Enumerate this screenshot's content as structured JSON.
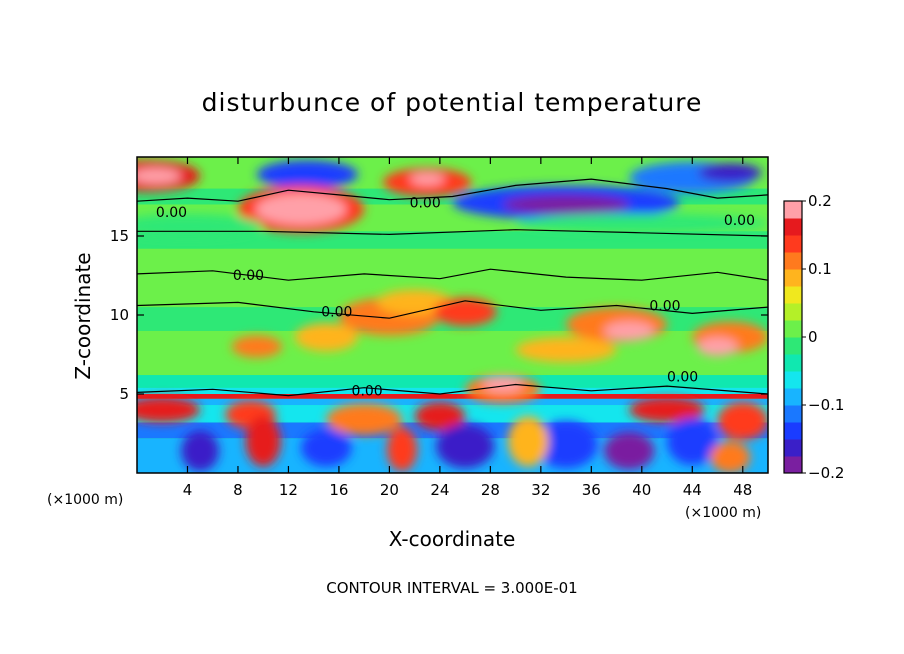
{
  "chart_data": {
    "type": "heatmap",
    "title": "disturbunce of potential temperature",
    "xlabel": "X-coordinate",
    "ylabel": "Z-coordinate",
    "x_unit_label": "(×1000 m)",
    "z_unit_label": "(×1000 m)",
    "xlim": [
      0,
      50
    ],
    "ylim": [
      0,
      20
    ],
    "x_ticks": [
      4,
      8,
      12,
      16,
      20,
      24,
      28,
      32,
      36,
      40,
      44,
      48
    ],
    "y_ticks": [
      5,
      10,
      15
    ],
    "colorbar": {
      "range": [
        -0.2,
        0.2
      ],
      "ticks": [
        {
          "value": 0.2,
          "label": "0.2"
        },
        {
          "value": 0.1,
          "label": "0.1"
        },
        {
          "value": 0,
          "label": "0"
        },
        {
          "value": -0.1,
          "label": "−0.1"
        },
        {
          "value": -0.2,
          "label": "−0.2"
        }
      ],
      "colors": [
        "#7a1fa0",
        "#3a1fc8",
        "#1a3cff",
        "#1a78ff",
        "#18b4ff",
        "#14e6ee",
        "#10e8b0",
        "#2ee876",
        "#6cf04a",
        "#b4f028",
        "#f0e81e",
        "#ffb41e",
        "#ff7a1e",
        "#ff3a1e",
        "#e61a1e",
        "#ffa0a8"
      ]
    },
    "contour_labels": [
      {
        "text": "0.00",
        "x": 1.5,
        "z": 16.2
      },
      {
        "text": "0.00",
        "x": 21.6,
        "z": 16.8
      },
      {
        "text": "0.00",
        "x": 46.5,
        "z": 15.7
      },
      {
        "text": "0.00",
        "x": 7.6,
        "z": 12.2
      },
      {
        "text": "0.00",
        "x": 14.6,
        "z": 9.9
      },
      {
        "text": "0.00",
        "x": 40.6,
        "z": 10.3
      },
      {
        "text": "0.00",
        "x": 42.0,
        "z": 5.8
      },
      {
        "text": "0.00",
        "x": 17.0,
        "z": 4.9
      }
    ],
    "annotation": "CONTOUR INTERVAL = 3.000E-01"
  }
}
